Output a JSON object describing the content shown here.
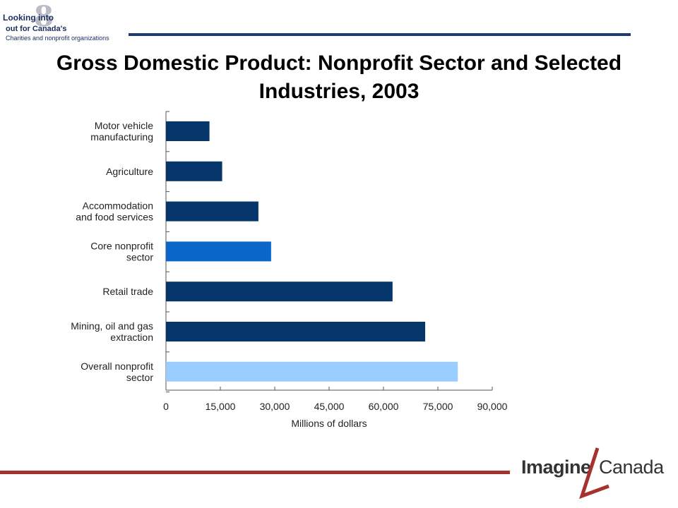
{
  "header": {
    "logo": {
      "line1": "Looking into",
      "numeral": "8",
      "line2": "out for Canada's",
      "line3": "Charities and nonprofit organizations"
    }
  },
  "slide": {
    "title": "Gross Domestic Product: Nonprofit Sector and Selected Industries, 2003"
  },
  "chart_data": {
    "type": "bar",
    "orientation": "horizontal",
    "title": "",
    "xlabel": "Millions of dollars",
    "ylabel": "",
    "xlim": [
      0,
      90000
    ],
    "x_ticks": [
      "0",
      "15,000",
      "30,000",
      "45,000",
      "60,000",
      "75,000",
      "90,000"
    ],
    "categories": [
      [
        "Motor vehicle",
        "manufacturing"
      ],
      [
        "Agriculture"
      ],
      [
        "Accommodation",
        "and food services"
      ],
      [
        "Core nonprofit",
        "sector"
      ],
      [
        "Retail trade"
      ],
      [
        "Mining, oil and gas",
        "extraction"
      ],
      [
        "Overall nonprofit",
        "sector"
      ]
    ],
    "values": [
      12000,
      15500,
      25500,
      29000,
      62500,
      71500,
      80500
    ],
    "colors": [
      "#06366a",
      "#06366a",
      "#06366a",
      "#0a66c9",
      "#06366a",
      "#06366a",
      "#99ccff"
    ],
    "grid": false,
    "legend": "none"
  },
  "footer": {
    "brand_left": "Imagine",
    "brand_right": "Canada",
    "brand_color": "#a5322e"
  }
}
